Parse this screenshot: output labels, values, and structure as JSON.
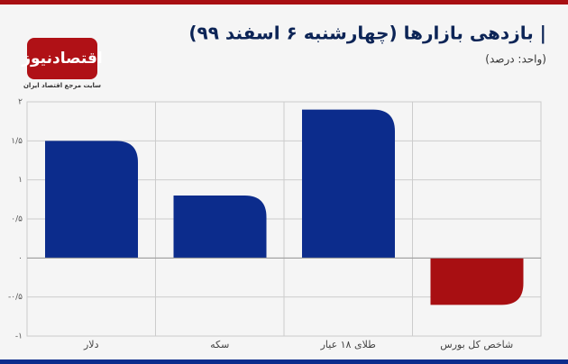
{
  "branding": {
    "name": "اقتصادنیوز",
    "tagline": "سایت مرجع اقتصاد ایران"
  },
  "chart_data": {
    "type": "bar",
    "title": "| بازدهی بازارها (چهارشنبه ۶ اسفند ۹۹)",
    "subtitle": "(واحد: درصد)",
    "categories": [
      "دلار",
      "سکه",
      "طلای ۱۸ عیار",
      "شاخص کل بورس"
    ],
    "values": [
      1.5,
      0.8,
      1.9,
      -0.6
    ],
    "colors": [
      "#0c2c8c",
      "#0c2c8c",
      "#0c2c8c",
      "#a80f12"
    ],
    "ylim": [
      -1,
      2
    ],
    "yticks": [
      {
        "value": -1,
        "label": "-۱"
      },
      {
        "value": -0.5,
        "label": "-۰/۵"
      },
      {
        "value": 0,
        "label": "۰"
      },
      {
        "value": 0.5,
        "label": "۰/۵"
      },
      {
        "value": 1,
        "label": "۱"
      },
      {
        "value": 1.5,
        "label": "۱/۵"
      },
      {
        "value": 2,
        "label": "۲"
      }
    ],
    "grid": true
  }
}
